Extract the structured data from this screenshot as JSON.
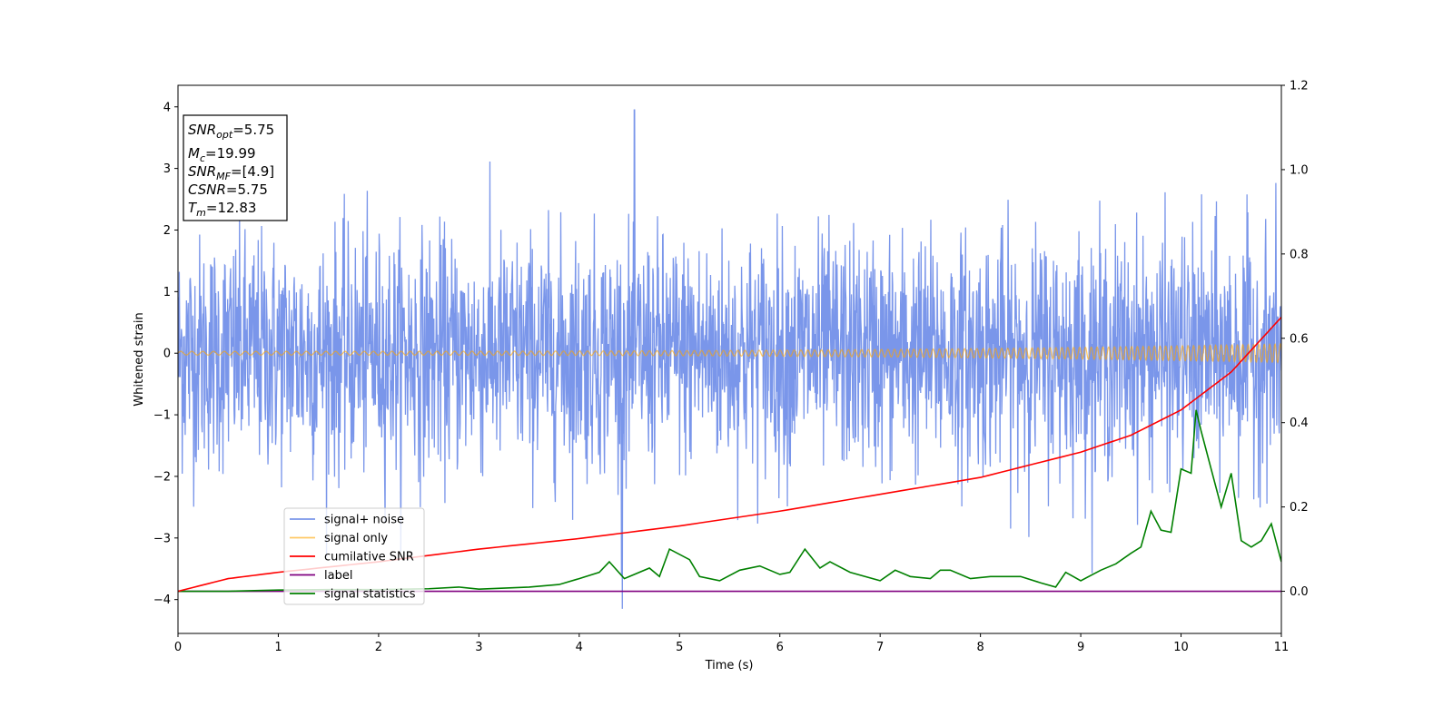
{
  "chart_data": {
    "type": "line",
    "xlabel": "Time (s)",
    "ylabel": "Whitened strain",
    "xlim": [
      0,
      11
    ],
    "ylim": [
      -4.55,
      4.35
    ],
    "y2lim": [
      -0.1,
      1.2
    ],
    "x_ticks": [
      0,
      1,
      2,
      3,
      4,
      5,
      6,
      7,
      8,
      9,
      10,
      11
    ],
    "y_ticks": [
      4,
      3,
      2,
      1,
      0,
      -1,
      -2,
      -3,
      -4
    ],
    "y2_ticks": [
      1.2,
      1.0,
      0.8,
      0.6,
      0.4,
      0.2,
      0.0
    ],
    "grid": false,
    "legend_location": "lower-left",
    "info_box": [
      {
        "main": "SNR",
        "sub": "opt",
        "value": "=5.75"
      },
      {
        "main": "M",
        "sub": "c",
        "value": "=19.99"
      },
      {
        "main": "SNR",
        "sub": "MF",
        "value": "=[4.9]"
      },
      {
        "main": "CSNR",
        "sub": "",
        "value": "=5.75"
      },
      {
        "main": "T",
        "sub": "m",
        "value": "=12.83"
      }
    ],
    "series": [
      {
        "name": "signal+ noise",
        "color": "#4169e1",
        "axis": "left",
        "description_values": "gaussian noise, std ~1, peaks up to 3.95 near t=4.55 and down to -4.15 near t=4.43"
      },
      {
        "name": "signal only",
        "color": "#ffa500",
        "axis": "left",
        "amplitude_start": 0.03,
        "amplitude_end": 0.15,
        "x_start": 0,
        "x_end": 11
      },
      {
        "name": "cumilative SNR",
        "color": "#ff0000",
        "axis": "right",
        "x": [
          0,
          0.5,
          1,
          2,
          3,
          4,
          5,
          6,
          7,
          8,
          9,
          9.5,
          10,
          10.5,
          11
        ],
        "values": [
          0.0,
          0.03,
          0.045,
          0.07,
          0.1,
          0.125,
          0.155,
          0.19,
          0.23,
          0.27,
          0.33,
          0.37,
          0.43,
          0.52,
          0.65
        ]
      },
      {
        "name": "label",
        "color": "#800080",
        "axis": "right",
        "x": [
          0,
          11
        ],
        "values": [
          0.0,
          0.0
        ]
      },
      {
        "name": "signal statistics",
        "color": "#008000",
        "axis": "right",
        "x": [
          0,
          0.5,
          1,
          1.5,
          2,
          2.5,
          2.8,
          3,
          3.5,
          3.8,
          4,
          4.2,
          4.3,
          4.45,
          4.5,
          4.7,
          4.8,
          4.9,
          5.1,
          5.2,
          5.4,
          5.6,
          5.8,
          6.0,
          6.1,
          6.25,
          6.4,
          6.5,
          6.7,
          7.0,
          7.15,
          7.3,
          7.5,
          7.6,
          7.7,
          7.9,
          8.1,
          8.4,
          8.6,
          8.75,
          8.85,
          9.0,
          9.2,
          9.35,
          9.5,
          9.6,
          9.7,
          9.8,
          9.9,
          10.0,
          10.1,
          10.15,
          10.2,
          10.3,
          10.4,
          10.5,
          10.6,
          10.7,
          10.8,
          10.9,
          11.0
        ],
        "values": [
          0.0,
          0.0,
          0.003,
          0.004,
          0.004,
          0.006,
          0.01,
          0.005,
          0.01,
          0.016,
          0.03,
          0.045,
          0.07,
          0.03,
          0.035,
          0.055,
          0.035,
          0.1,
          0.075,
          0.035,
          0.025,
          0.05,
          0.06,
          0.04,
          0.045,
          0.1,
          0.055,
          0.07,
          0.045,
          0.025,
          0.05,
          0.035,
          0.03,
          0.05,
          0.05,
          0.03,
          0.035,
          0.035,
          0.02,
          0.01,
          0.045,
          0.025,
          0.05,
          0.065,
          0.09,
          0.105,
          0.19,
          0.145,
          0.14,
          0.29,
          0.28,
          0.43,
          0.38,
          0.29,
          0.2,
          0.28,
          0.12,
          0.105,
          0.12,
          0.16,
          0.07
        ]
      }
    ]
  }
}
